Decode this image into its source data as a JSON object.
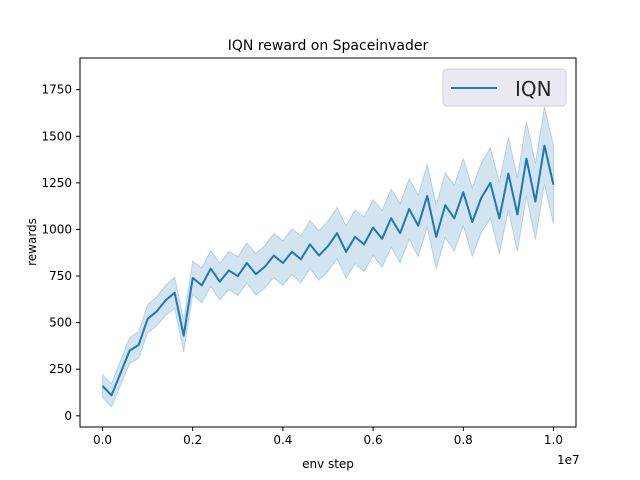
{
  "chart_data": {
    "type": "line",
    "title": "IQN reward on Spaceinvader",
    "xlabel": "env step",
    "ylabel": "rewards",
    "x_multiplier_label": "1e7",
    "xlim": [
      -0.05,
      1.05
    ],
    "ylim": [
      -60,
      1920
    ],
    "xticks": [
      "0.0",
      "0.2",
      "0.4",
      "0.6",
      "0.8",
      "1.0"
    ],
    "yticks": [
      "0",
      "250",
      "500",
      "750",
      "1000",
      "1250",
      "1500",
      "1750"
    ],
    "grid": false,
    "legend_position": "top-right",
    "colors": {
      "line": "#1f77b4",
      "band": "#1f77b4",
      "legend_bg": "#eaeaf2"
    },
    "series": [
      {
        "name": "IQN",
        "x": [
          0,
          0.02,
          0.04,
          0.06,
          0.08,
          0.1,
          0.12,
          0.14,
          0.16,
          0.18,
          0.2,
          0.22,
          0.24,
          0.26,
          0.28,
          0.3,
          0.32,
          0.34,
          0.36,
          0.38,
          0.4,
          0.42,
          0.44,
          0.46,
          0.48,
          0.5,
          0.52,
          0.54,
          0.56,
          0.58,
          0.6,
          0.62,
          0.64,
          0.66,
          0.68,
          0.7,
          0.72,
          0.74,
          0.76,
          0.78,
          0.8,
          0.82,
          0.84,
          0.86,
          0.88,
          0.9,
          0.92,
          0.94,
          0.96,
          0.98,
          1.0
        ],
        "y": [
          160,
          110,
          230,
          350,
          380,
          520,
          560,
          620,
          660,
          430,
          740,
          700,
          790,
          720,
          780,
          750,
          820,
          760,
          800,
          860,
          820,
          880,
          840,
          920,
          860,
          910,
          980,
          880,
          960,
          920,
          1010,
          950,
          1060,
          980,
          1110,
          1020,
          1180,
          960,
          1130,
          1060,
          1200,
          1040,
          1170,
          1250,
          1060,
          1300,
          1080,
          1380,
          1150,
          1450,
          1240
        ],
        "band_halfwidth": [
          60,
          63,
          66,
          69,
          72,
          75,
          78,
          81,
          84,
          87,
          90,
          93,
          96,
          99,
          102,
          105,
          108,
          111,
          114,
          117,
          120,
          123,
          126,
          129,
          132,
          135,
          138,
          141,
          144,
          147,
          150,
          153,
          156,
          159,
          162,
          165,
          168,
          171,
          174,
          177,
          180,
          183,
          186,
          189,
          192,
          195,
          198,
          201,
          204,
          207,
          210
        ]
      }
    ]
  }
}
